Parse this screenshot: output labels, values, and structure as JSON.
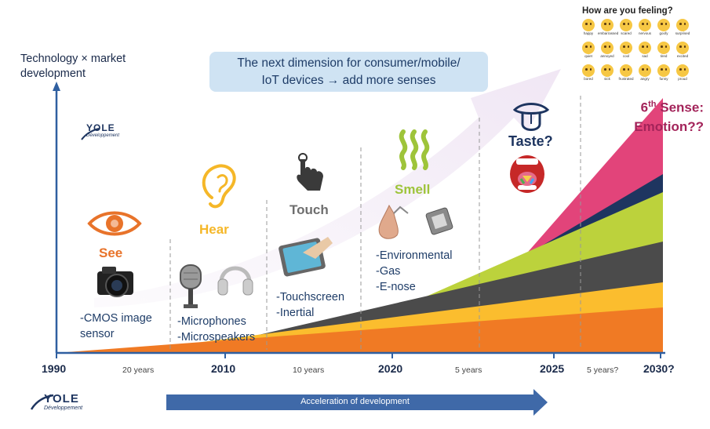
{
  "y_axis_label": "Technology × market development",
  "callout": {
    "line1": "The next dimension for consumer/mobile/",
    "line2": "IoT devices → add more senses"
  },
  "senses": {
    "see": "See",
    "hear": "Hear",
    "touch": "Touch",
    "smell": "Smell",
    "taste": "Taste?",
    "emotion_line1": "6",
    "emotion_sup": "th",
    "emotion_line1b": " Sense:",
    "emotion_line2": "Emotion??"
  },
  "sensors": {
    "see": [
      "-CMOS image",
      "sensor"
    ],
    "hear": [
      "-Microphones",
      "-Microspeakers"
    ],
    "touch": [
      "-Touchscreen",
      "-Inertial"
    ],
    "smell": [
      "-Environmental",
      "-Gas",
      "-E-nose"
    ]
  },
  "timeline": {
    "years": [
      "1990",
      "2010",
      "2020",
      "2025",
      "2030?"
    ],
    "gaps": [
      "20 years",
      "10 years",
      "5 years",
      "5 years?"
    ]
  },
  "arrow_label": "Acceleration of development",
  "brand": {
    "name": "YOLE",
    "sub": "Développement"
  },
  "emotions": {
    "title": "How are you feeling?",
    "labels": [
      "happy",
      "embarrassed",
      "scared",
      "nervous",
      "goofy",
      "surprised",
      "quiet",
      "annoyed",
      "cool",
      "sad",
      "tired",
      "excited",
      "bored",
      "sick",
      "frustrated",
      "angry",
      "funny",
      "proud"
    ]
  },
  "colors": {
    "axis": "#2f5fa0",
    "see": "#e8732a",
    "hear": "#f5b728",
    "touch": "#6e6e6e",
    "smell": "#9ec43a",
    "taste": "#1e3560",
    "emotion": "#a3245a",
    "wedge_orange": "#f07a24",
    "wedge_yellow": "#fbbd2e",
    "wedge_gray": "#4b4b4b",
    "wedge_green": "#bcd23c",
    "wedge_navy": "#1e3560",
    "wedge_pink": "#e2447a",
    "callout_bg": "#cfe3f3",
    "accel_arrow": "#3f69a8"
  },
  "icons": [
    "eye-icon",
    "camera-icon",
    "ear-icon",
    "microphone-icon",
    "headphones-icon",
    "touch-hand-icon",
    "tablet-icon",
    "smell-waves-icon",
    "nose-icon",
    "gas-sensor-chip-icon",
    "tongue-icon",
    "mouth-icon",
    "emoji-grid"
  ]
}
